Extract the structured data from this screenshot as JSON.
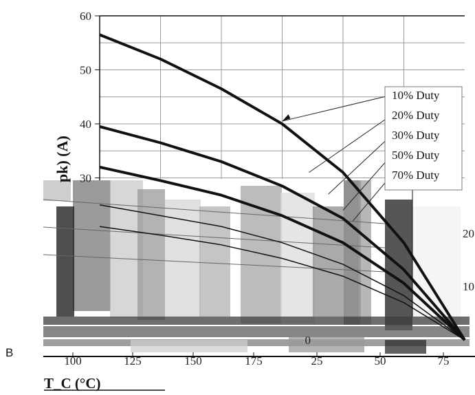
{
  "page_letter": "B",
  "chart_data": {
    "type": "line",
    "title": "",
    "xlabel": "T_C (°C)",
    "ylabel": "pk) (A)",
    "x_tick_labels": [
      "100",
      "125",
      "150",
      "175",
      "25",
      "50",
      "75"
    ],
    "y_tick_labels": [
      "60",
      "50",
      "40",
      "30"
    ],
    "secondary_y_tick_labels": [
      "20",
      "10",
      "0"
    ],
    "ylim": [
      0,
      60
    ],
    "grid": true,
    "legend_position": "right",
    "series": [
      {
        "name": "10% Duty",
        "x": [
          0,
          25,
          50,
          75,
          100,
          125,
          150
        ],
        "values": [
          56.5,
          52,
          46.5,
          40,
          31,
          18,
          0
        ]
      },
      {
        "name": "20% Duty",
        "x": [
          0,
          25,
          50,
          75,
          100,
          125,
          150
        ],
        "values": [
          39.5,
          36.5,
          33,
          28.5,
          22.5,
          13,
          0
        ]
      },
      {
        "name": "30% Duty",
        "x": [
          0,
          25,
          50,
          75,
          100,
          125,
          150
        ],
        "values": [
          32,
          29.5,
          26.8,
          23,
          18,
          10.5,
          0
        ]
      },
      {
        "name": "50% Duty",
        "x": [
          0,
          25,
          50,
          75,
          100,
          125,
          150
        ],
        "values": [
          25,
          23,
          21,
          18,
          14,
          8.2,
          0
        ]
      },
      {
        "name": "70% Duty",
        "x": [
          0,
          25,
          50,
          75,
          100,
          125,
          150
        ],
        "values": [
          21,
          19.4,
          17.6,
          15.1,
          11.8,
          6.9,
          0
        ]
      }
    ]
  }
}
